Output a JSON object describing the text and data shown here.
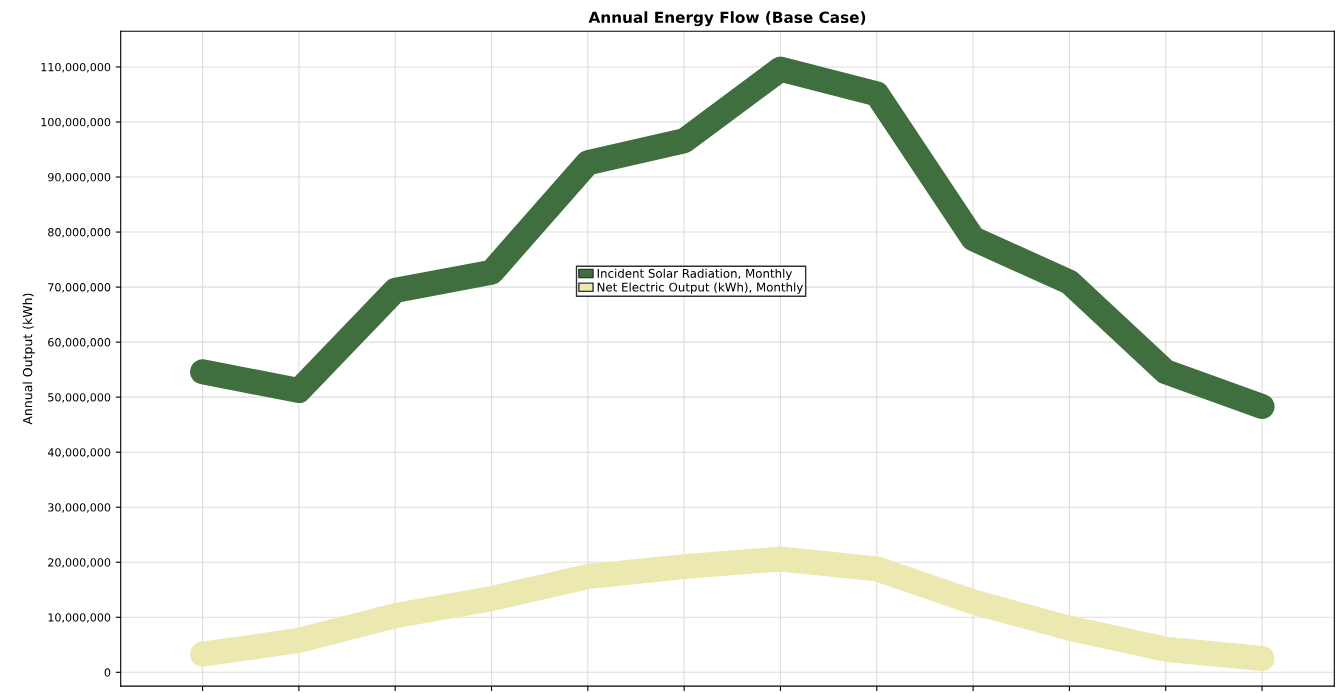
{
  "chart_data": {
    "type": "line",
    "title": "Annual Energy Flow (Base Case)",
    "ylabel": "Annual Output (kWh)",
    "categories": [
      null,
      null,
      null,
      null,
      null,
      null,
      null,
      null,
      null,
      null,
      null,
      null
    ],
    "series": [
      {
        "name": "Incident Solar Radiation, Monthly",
        "color": "#3f6e3f",
        "values": [
          54600000,
          51200000,
          69400000,
          72700000,
          92600000,
          96600000,
          109600000,
          105100000,
          78800000,
          70900000,
          54600000,
          48300000
        ]
      },
      {
        "name": "Net Electric Output (kWh), Monthly",
        "color": "#ece9b0",
        "values": [
          3300000,
          5800000,
          10300000,
          13400000,
          17400000,
          19200000,
          20600000,
          18800000,
          12800000,
          8000000,
          4200000,
          2500000
        ]
      }
    ],
    "ylim": [
      -2500000,
      116500000
    ],
    "yticks": [
      {
        "value": 0,
        "label": "0"
      },
      {
        "value": 10000000,
        "label": "10,000,000"
      },
      {
        "value": 20000000,
        "label": "20,000,000"
      },
      {
        "value": 30000000,
        "label": "30,000,000"
      },
      {
        "value": 40000000,
        "label": "40,000,000"
      },
      {
        "value": 50000000,
        "label": "50,000,000"
      },
      {
        "value": 60000000,
        "label": "60,000,000"
      },
      {
        "value": 70000000,
        "label": "70,000,000"
      },
      {
        "value": 80000000,
        "label": "80,000,000"
      },
      {
        "value": 90000000,
        "label": "90,000,000"
      },
      {
        "value": 100000000,
        "label": "100,000,000"
      },
      {
        "value": 110000000,
        "label": "110,000,000"
      }
    ],
    "grid": true,
    "legend": "top",
    "line_style": "solid",
    "tick_labels": "y"
  }
}
